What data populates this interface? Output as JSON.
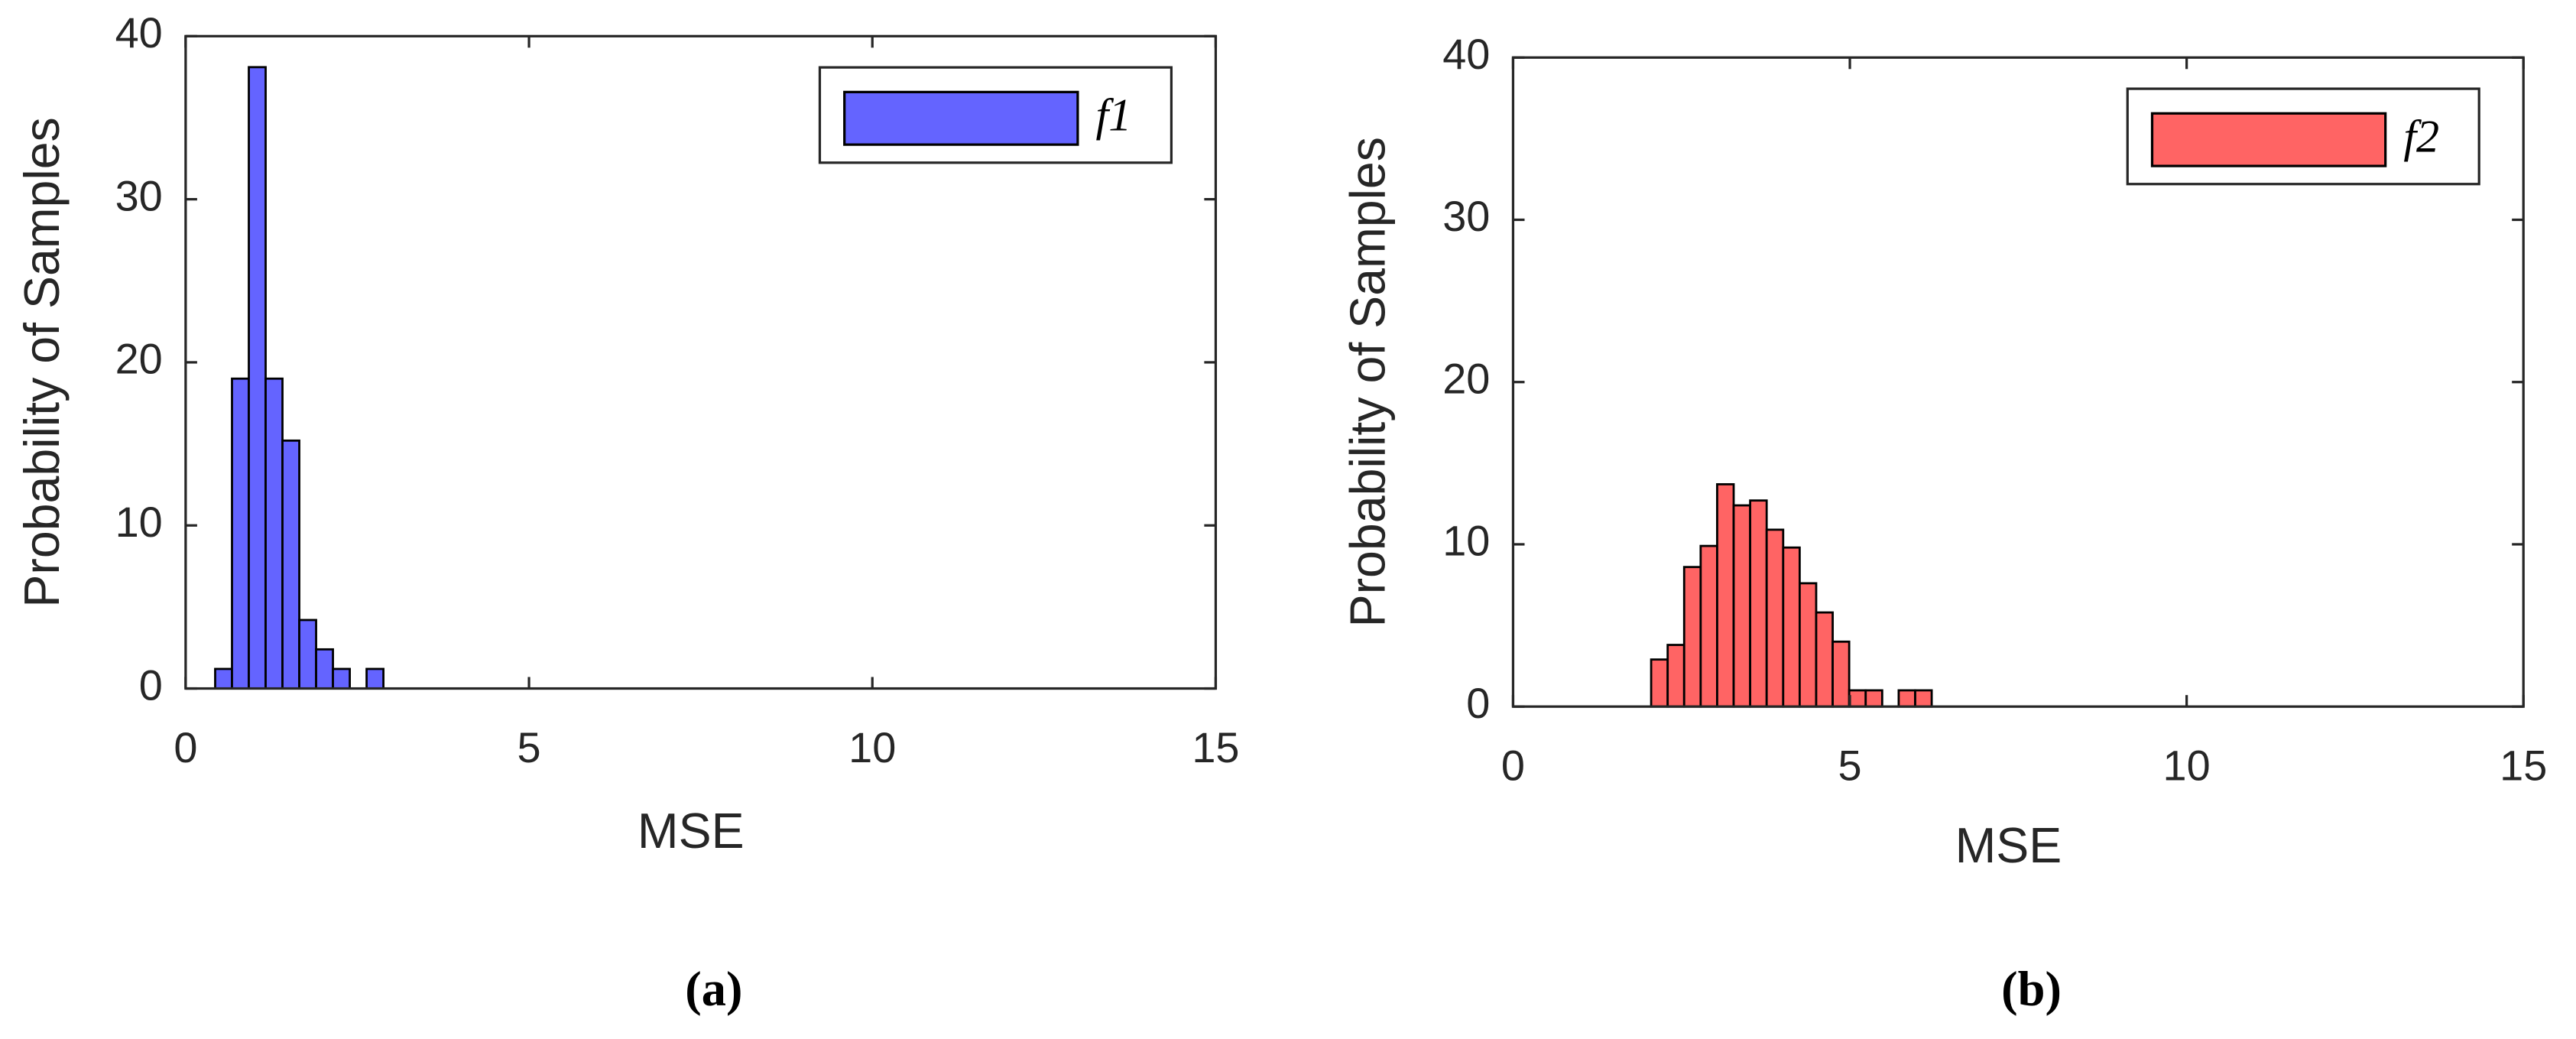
{
  "chart_data": [
    {
      "type": "histogram",
      "caption": "(a)",
      "xlabel": "MSE",
      "ylabel": "Probability of Samples",
      "bins": [
        0.43,
        0.675,
        0.92,
        1.165,
        1.41,
        1.655,
        1.9,
        2.145,
        2.39,
        2.635,
        2.88
      ],
      "series": [
        {
          "name": "f1",
          "color": "#6464ff",
          "values": [
            1.2,
            19,
            38.1,
            19,
            15.2,
            4.2,
            2.4,
            1.2,
            0,
            1.2
          ]
        }
      ],
      "xlim": [
        0,
        15
      ],
      "xticks": [
        0,
        5,
        10,
        15
      ],
      "ylim": [
        0,
        40
      ],
      "yticks": [
        0,
        10,
        20,
        30,
        40
      ],
      "legend": "upper right"
    },
    {
      "type": "histogram",
      "caption": "(b)",
      "xlabel": "MSE",
      "ylabel": "Probability of Samples",
      "bins": [
        2.05,
        2.295,
        2.54,
        2.785,
        3.03,
        3.275,
        3.52,
        3.765,
        4.01,
        4.255,
        4.5,
        4.745,
        4.99,
        5.235,
        5.48,
        5.725,
        5.97,
        6.215
      ],
      "series": [
        {
          "name": "f2",
          "color": "#ff6464",
          "values": [
            2.9,
            3.8,
            8.6,
            9.9,
            13.7,
            12.4,
            12.7,
            10.9,
            9.8,
            7.6,
            5.8,
            4,
            1,
            1,
            0,
            1,
            1
          ]
        }
      ],
      "xlim": [
        0,
        15
      ],
      "xticks": [
        0,
        5,
        10,
        15
      ],
      "ylim": [
        0,
        40
      ],
      "yticks": [
        0,
        10,
        20,
        30,
        40
      ],
      "legend": "upper right"
    }
  ]
}
